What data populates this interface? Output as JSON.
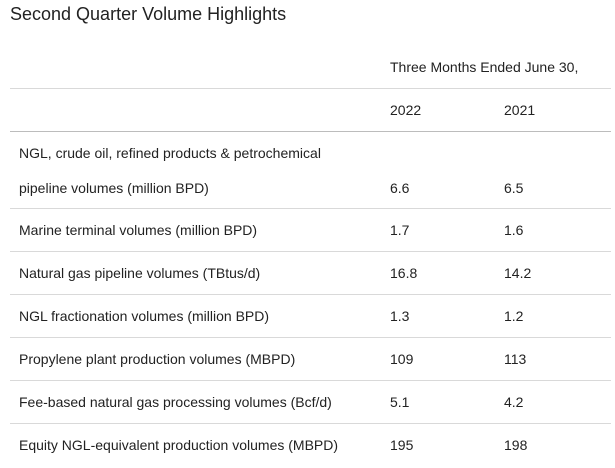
{
  "title": "Second Quarter Volume Highlights",
  "table": {
    "period_header": "Three Months Ended June 30,",
    "years": [
      "2022",
      "2021"
    ],
    "rows": [
      {
        "label_line1": "NGL, crude oil, refined products & petrochemical",
        "label_line2": "pipeline volumes (million BPD)",
        "v2022": "6.6",
        "v2021": "6.5"
      },
      {
        "label": "Marine terminal volumes (million BPD)",
        "v2022": "1.7",
        "v2021": "1.6"
      },
      {
        "label": "Natural gas pipeline volumes (TBtus/d)",
        "v2022": "16.8",
        "v2021": "14.2"
      },
      {
        "label": "NGL fractionation volumes (million BPD)",
        "v2022": "1.3",
        "v2021": "1.2"
      },
      {
        "label": "Propylene plant production volumes (MBPD)",
        "v2022": "109",
        "v2021": "113"
      },
      {
        "label": "Fee-based natural gas processing volumes (Bcf/d)",
        "v2022": "5.1",
        "v2021": "4.2"
      },
      {
        "label": "Equity NGL-equivalent production volumes (MBPD)",
        "v2022": "195",
        "v2021": "198"
      }
    ]
  }
}
